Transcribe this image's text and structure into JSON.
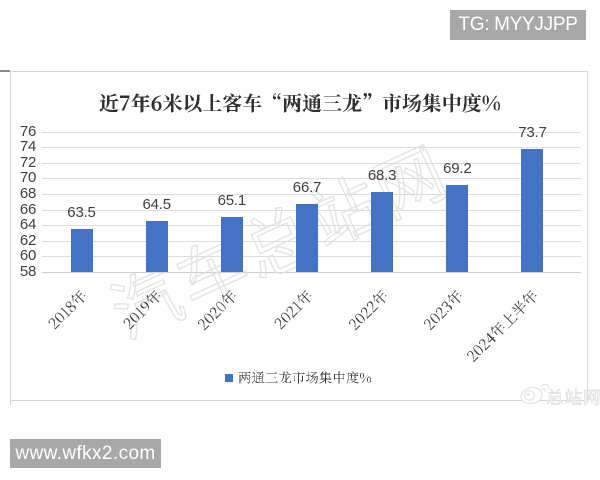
{
  "badges": {
    "tg": "TG: MYYJJPP",
    "site": "www.wfkx2.com"
  },
  "chart_data": {
    "type": "bar",
    "title": "近7年6米以上客车“两通三龙”市场集中度%",
    "categories": [
      "2018年",
      "2019年",
      "2020年",
      "2021年",
      "2022年",
      "2023年",
      "2024年上半年"
    ],
    "values": [
      63.5,
      64.5,
      65.1,
      66.7,
      68.3,
      69.2,
      73.7
    ],
    "series": [
      {
        "name": "两通三龙市场集中度%",
        "values": [
          63.5,
          64.5,
          65.1,
          66.7,
          68.3,
          69.2,
          73.7
        ]
      }
    ],
    "xlabel": "",
    "ylabel": "",
    "ylim": [
      58,
      76
    ],
    "yticks": [
      58,
      60,
      62,
      64,
      66,
      68,
      70,
      72,
      74,
      76
    ],
    "grid": true,
    "legend_position": "bottom",
    "bar_color": "#4472C4",
    "value_label_color": "#3f3f3f"
  },
  "watermarks": {
    "diagonal": "汽车总站网",
    "corner": "总站网",
    "corner_icon": "weibo-logo-icon"
  },
  "colors": {
    "bar": "#4472C4",
    "badge_bg": "#a8a8a8",
    "badge_text": "#ffffff",
    "gridline": "#dcdcdc",
    "axis_text": "#3f3f3f",
    "title_text": "#333333",
    "panel_border": "#d6d6d6",
    "watermark": "#dcdcdc"
  }
}
